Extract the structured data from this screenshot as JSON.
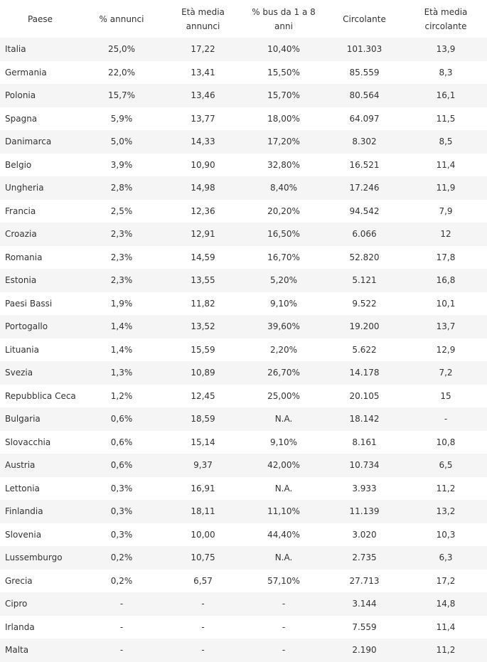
{
  "table": {
    "headers": [
      [
        "Paese"
      ],
      [
        "% annunci"
      ],
      [
        "Età media",
        "annunci"
      ],
      [
        "% bus da 1 a 8",
        "anni"
      ],
      [
        "Circolante"
      ],
      [
        "Età media",
        "circolante"
      ]
    ],
    "rows": [
      [
        "Italia",
        "25,0%",
        "17,22",
        "10,40%",
        "101.303",
        "13,9"
      ],
      [
        "Germania",
        "22,0%",
        "13,41",
        "15,50%",
        "85.559",
        "8,3"
      ],
      [
        "Polonia",
        "15,7%",
        "13,46",
        "15,70%",
        "80.564",
        "16,1"
      ],
      [
        "Spagna",
        "5,9%",
        "13,77",
        "18,00%",
        "64.097",
        "11,5"
      ],
      [
        "Danimarca",
        "5,0%",
        "14,33",
        "17,20%",
        "8.302",
        "8,5"
      ],
      [
        "Belgio",
        "3,9%",
        "10,90",
        "32,80%",
        "16.521",
        "11,4"
      ],
      [
        "Ungheria",
        "2,8%",
        "14,98",
        "8,40%",
        "17.246",
        "11,9"
      ],
      [
        "Francia",
        "2,5%",
        "12,36",
        "20,20%",
        "94.542",
        "7,9"
      ],
      [
        "Croazia",
        "2,3%",
        "12,91",
        "16,50%",
        "6.066",
        "12"
      ],
      [
        "Romania",
        "2,3%",
        "14,59",
        "16,70%",
        "52.820",
        "17,8"
      ],
      [
        "Estonia",
        "2,3%",
        "13,55",
        "5,20%",
        "5.121",
        "16,8"
      ],
      [
        "Paesi Bassi",
        "1,9%",
        "11,82",
        "9,10%",
        "9.522",
        "10,1"
      ],
      [
        "Portogallo",
        "1,4%",
        "13,52",
        "39,60%",
        "19.200",
        "13,7"
      ],
      [
        "Lituania",
        "1,4%",
        "15,59",
        "2,20%",
        "5.622",
        "12,9"
      ],
      [
        "Svezia",
        "1,3%",
        "10,89",
        "26,70%",
        "14.178",
        "7,2"
      ],
      [
        "Repubblica Ceca",
        "1,2%",
        "12,45",
        "25,00%",
        "20.105",
        "15"
      ],
      [
        "Bulgaria",
        "0,6%",
        "18,59",
        "N.A.",
        "18.142",
        "-"
      ],
      [
        "Slovacchia",
        "0,6%",
        "15,14",
        "9,10%",
        "8.161",
        "10,8"
      ],
      [
        "Austria",
        "0,6%",
        "9,37",
        "42,00%",
        "10.734",
        "6,5"
      ],
      [
        "Lettonia",
        "0,3%",
        "16,91",
        "N.A.",
        "3.933",
        "11,2"
      ],
      [
        "Finlandia",
        "0,3%",
        "18,11",
        "11,10%",
        "11.139",
        "13,2"
      ],
      [
        "Slovenia",
        "0,3%",
        "10,00",
        "44,40%",
        "3.020",
        "10,3"
      ],
      [
        "Lussemburgo",
        "0,2%",
        "10,75",
        "N.A.",
        "2.735",
        "6,3"
      ],
      [
        "Grecia",
        "0,2%",
        "6,57",
        "57,10%",
        "27.713",
        "17,2"
      ],
      [
        "Cipro",
        "-",
        "-",
        "-",
        "3.144",
        "14,8"
      ],
      [
        "Irlanda",
        "-",
        "-",
        "-",
        "7.559",
        "11,4"
      ],
      [
        "Malta",
        "-",
        "-",
        "-",
        "2.190",
        "11,2"
      ]
    ]
  }
}
